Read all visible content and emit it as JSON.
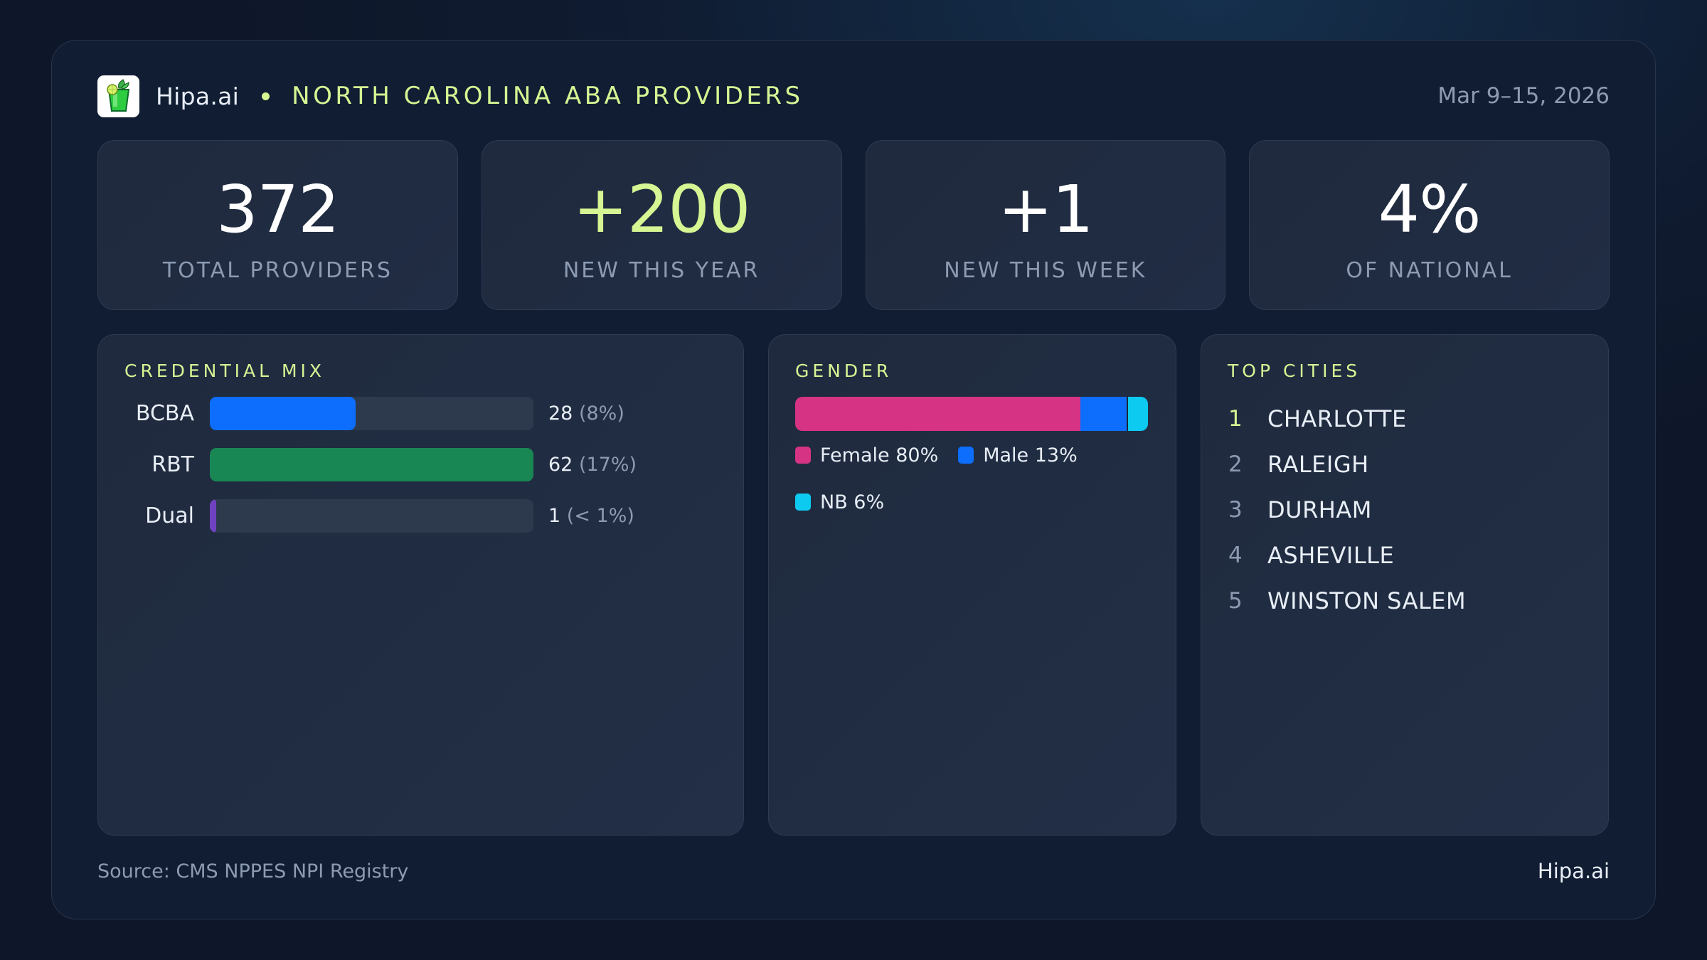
{
  "header": {
    "logo_icon": "mojito-glass-icon",
    "brand": "Hipa.ai",
    "title": "NORTH CAROLINA ABA PROVIDERS",
    "date_range": "Mar 9–15, 2026"
  },
  "stats": [
    {
      "value": "372",
      "label": "TOTAL PROVIDERS",
      "accent": false
    },
    {
      "value": "+200",
      "label": "NEW THIS YEAR",
      "accent": true
    },
    {
      "value": "+1",
      "label": "NEW THIS WEEK",
      "accent": false
    },
    {
      "value": "4%",
      "label": "OF NATIONAL",
      "accent": false
    }
  ],
  "credential_mix": {
    "title": "CREDENTIAL MIX",
    "rows": [
      {
        "label": "BCBA",
        "count": "28",
        "pct": "(8%)",
        "fill_pct": 45,
        "color": "#0d6efd"
      },
      {
        "label": "RBT",
        "count": "62",
        "pct": "(17%)",
        "fill_pct": 100,
        "color": "#198754"
      },
      {
        "label": "Dual",
        "count": "1",
        "pct": "(< 1%)",
        "fill_pct": 2,
        "color": "#6f42c1"
      }
    ]
  },
  "gender": {
    "title": "GENDER",
    "segments": [
      {
        "label": "Female 80%",
        "value": 80,
        "color": "#d63384"
      },
      {
        "label": "Male 13%",
        "value": 13,
        "color": "#0d6efd"
      },
      {
        "label": "NB 6%",
        "value": 6,
        "color": "#0dcaf0"
      }
    ]
  },
  "top_cities": {
    "title": "TOP CITIES",
    "items": [
      {
        "rank": "1",
        "name": "CHARLOTTE"
      },
      {
        "rank": "2",
        "name": "RALEIGH"
      },
      {
        "rank": "3",
        "name": "DURHAM"
      },
      {
        "rank": "4",
        "name": "ASHEVILLE"
      },
      {
        "rank": "5",
        "name": "WINSTON SALEM"
      }
    ]
  },
  "footer": {
    "source": "Source: CMS NPPES NPI Registry",
    "brand": "Hipa.ai"
  },
  "colors": {
    "accent": "#d6f593",
    "muted": "#8d9bb2",
    "background": "#0f1b30",
    "card": "#1f2a3e"
  },
  "chart_data": [
    {
      "type": "bar",
      "title": "CREDENTIAL MIX",
      "categories": [
        "BCBA",
        "RBT",
        "Dual"
      ],
      "values": [
        28,
        62,
        1
      ],
      "percent_labels": [
        "8%",
        "17%",
        "< 1%"
      ],
      "orientation": "horizontal"
    },
    {
      "type": "bar",
      "title": "GENDER",
      "stacked": true,
      "categories": [
        "Female",
        "Male",
        "NB"
      ],
      "values": [
        80,
        13,
        6
      ],
      "unit": "%",
      "legend_position": "below"
    }
  ]
}
